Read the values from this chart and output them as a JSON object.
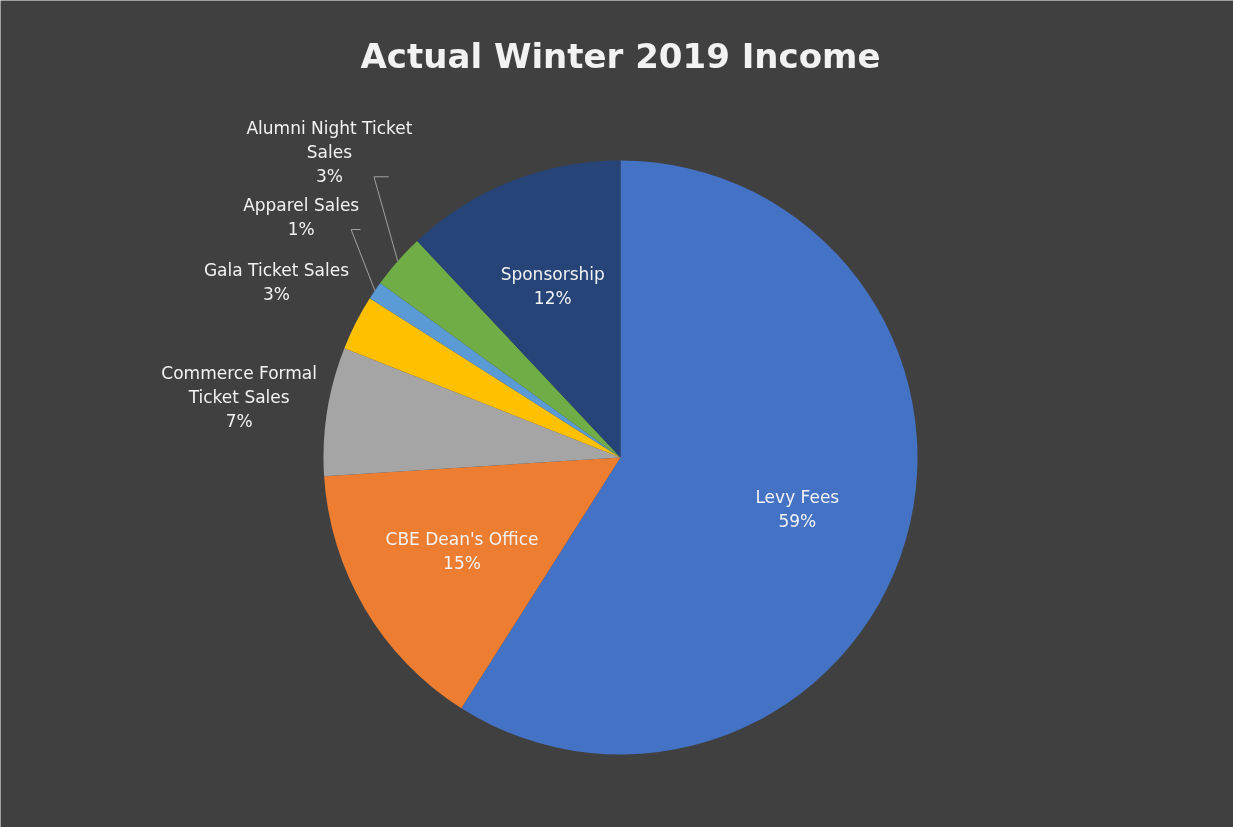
{
  "chart_data": {
    "type": "pie",
    "title": "Actual Winter 2019 Income",
    "categories": [
      "Levy Fees",
      "CBE Dean's Office",
      "Commerce Formal Ticket Sales",
      "Gala Ticket Sales",
      "Apparel Sales",
      "Alumni Night Ticket Sales",
      "Sponsorship"
    ],
    "values": [
      59,
      15,
      7,
      3,
      1,
      3,
      12
    ],
    "colors": [
      "#4472c4",
      "#ed7d31",
      "#a5a5a5",
      "#ffc000",
      "#5b9bd5",
      "#70ad47",
      "#264478"
    ],
    "value_labels": [
      "59%",
      "15%",
      "7%",
      "3%",
      "1%",
      "3%",
      "12%"
    ]
  }
}
